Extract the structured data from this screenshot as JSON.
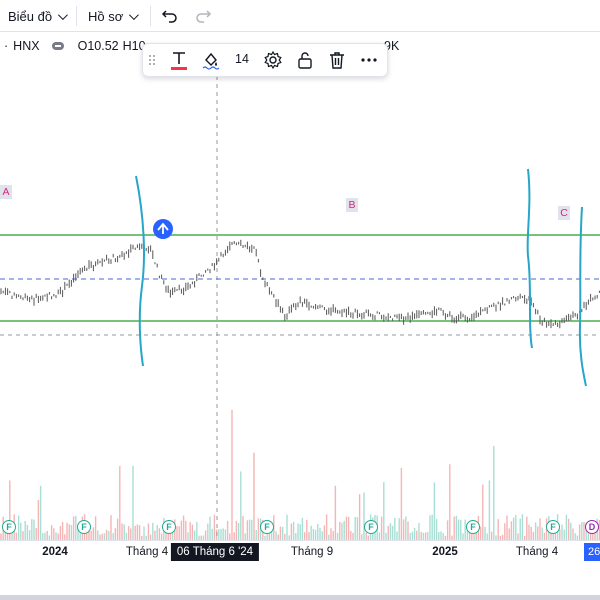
{
  "topbar": {
    "chart_menu_label": "Biểu đồ",
    "profile_menu_label": "Hồ sơ"
  },
  "symbol": {
    "exchange": "HNX",
    "ohlc_prefix": "O",
    "open_value": "10.52",
    "high_prefix": "H10",
    "volume_suffix": "9K"
  },
  "drawing_toolbar": {
    "font_size": "14",
    "text_color": "#f23645"
  },
  "annotations": {
    "label_a": "A",
    "label_b": "B",
    "label_c": "C"
  },
  "time_axis": {
    "ticks": [
      "2024",
      "Tháng 4",
      "Tháng 9",
      "2025",
      "Tháng 4"
    ],
    "bold_ticks": [
      "2024",
      "2025"
    ],
    "crosshair_label": "06 Tháng 6 '24",
    "right_edge_label": "26"
  },
  "event_markers": {
    "dividend_glyph": "F",
    "split_glyph": "D"
  },
  "colors": {
    "candle": "#555555",
    "channel_line": "#4caf50",
    "hand_drawn_line": "#26a6c8",
    "dashed_blue": "#3f6bd8",
    "dashed_gray": "#9598a1",
    "volume_up": "#a8dfd4",
    "volume_down": "#f5b5b5",
    "crosshair_bg": "#131722",
    "accent_blue": "#2962ff"
  }
}
